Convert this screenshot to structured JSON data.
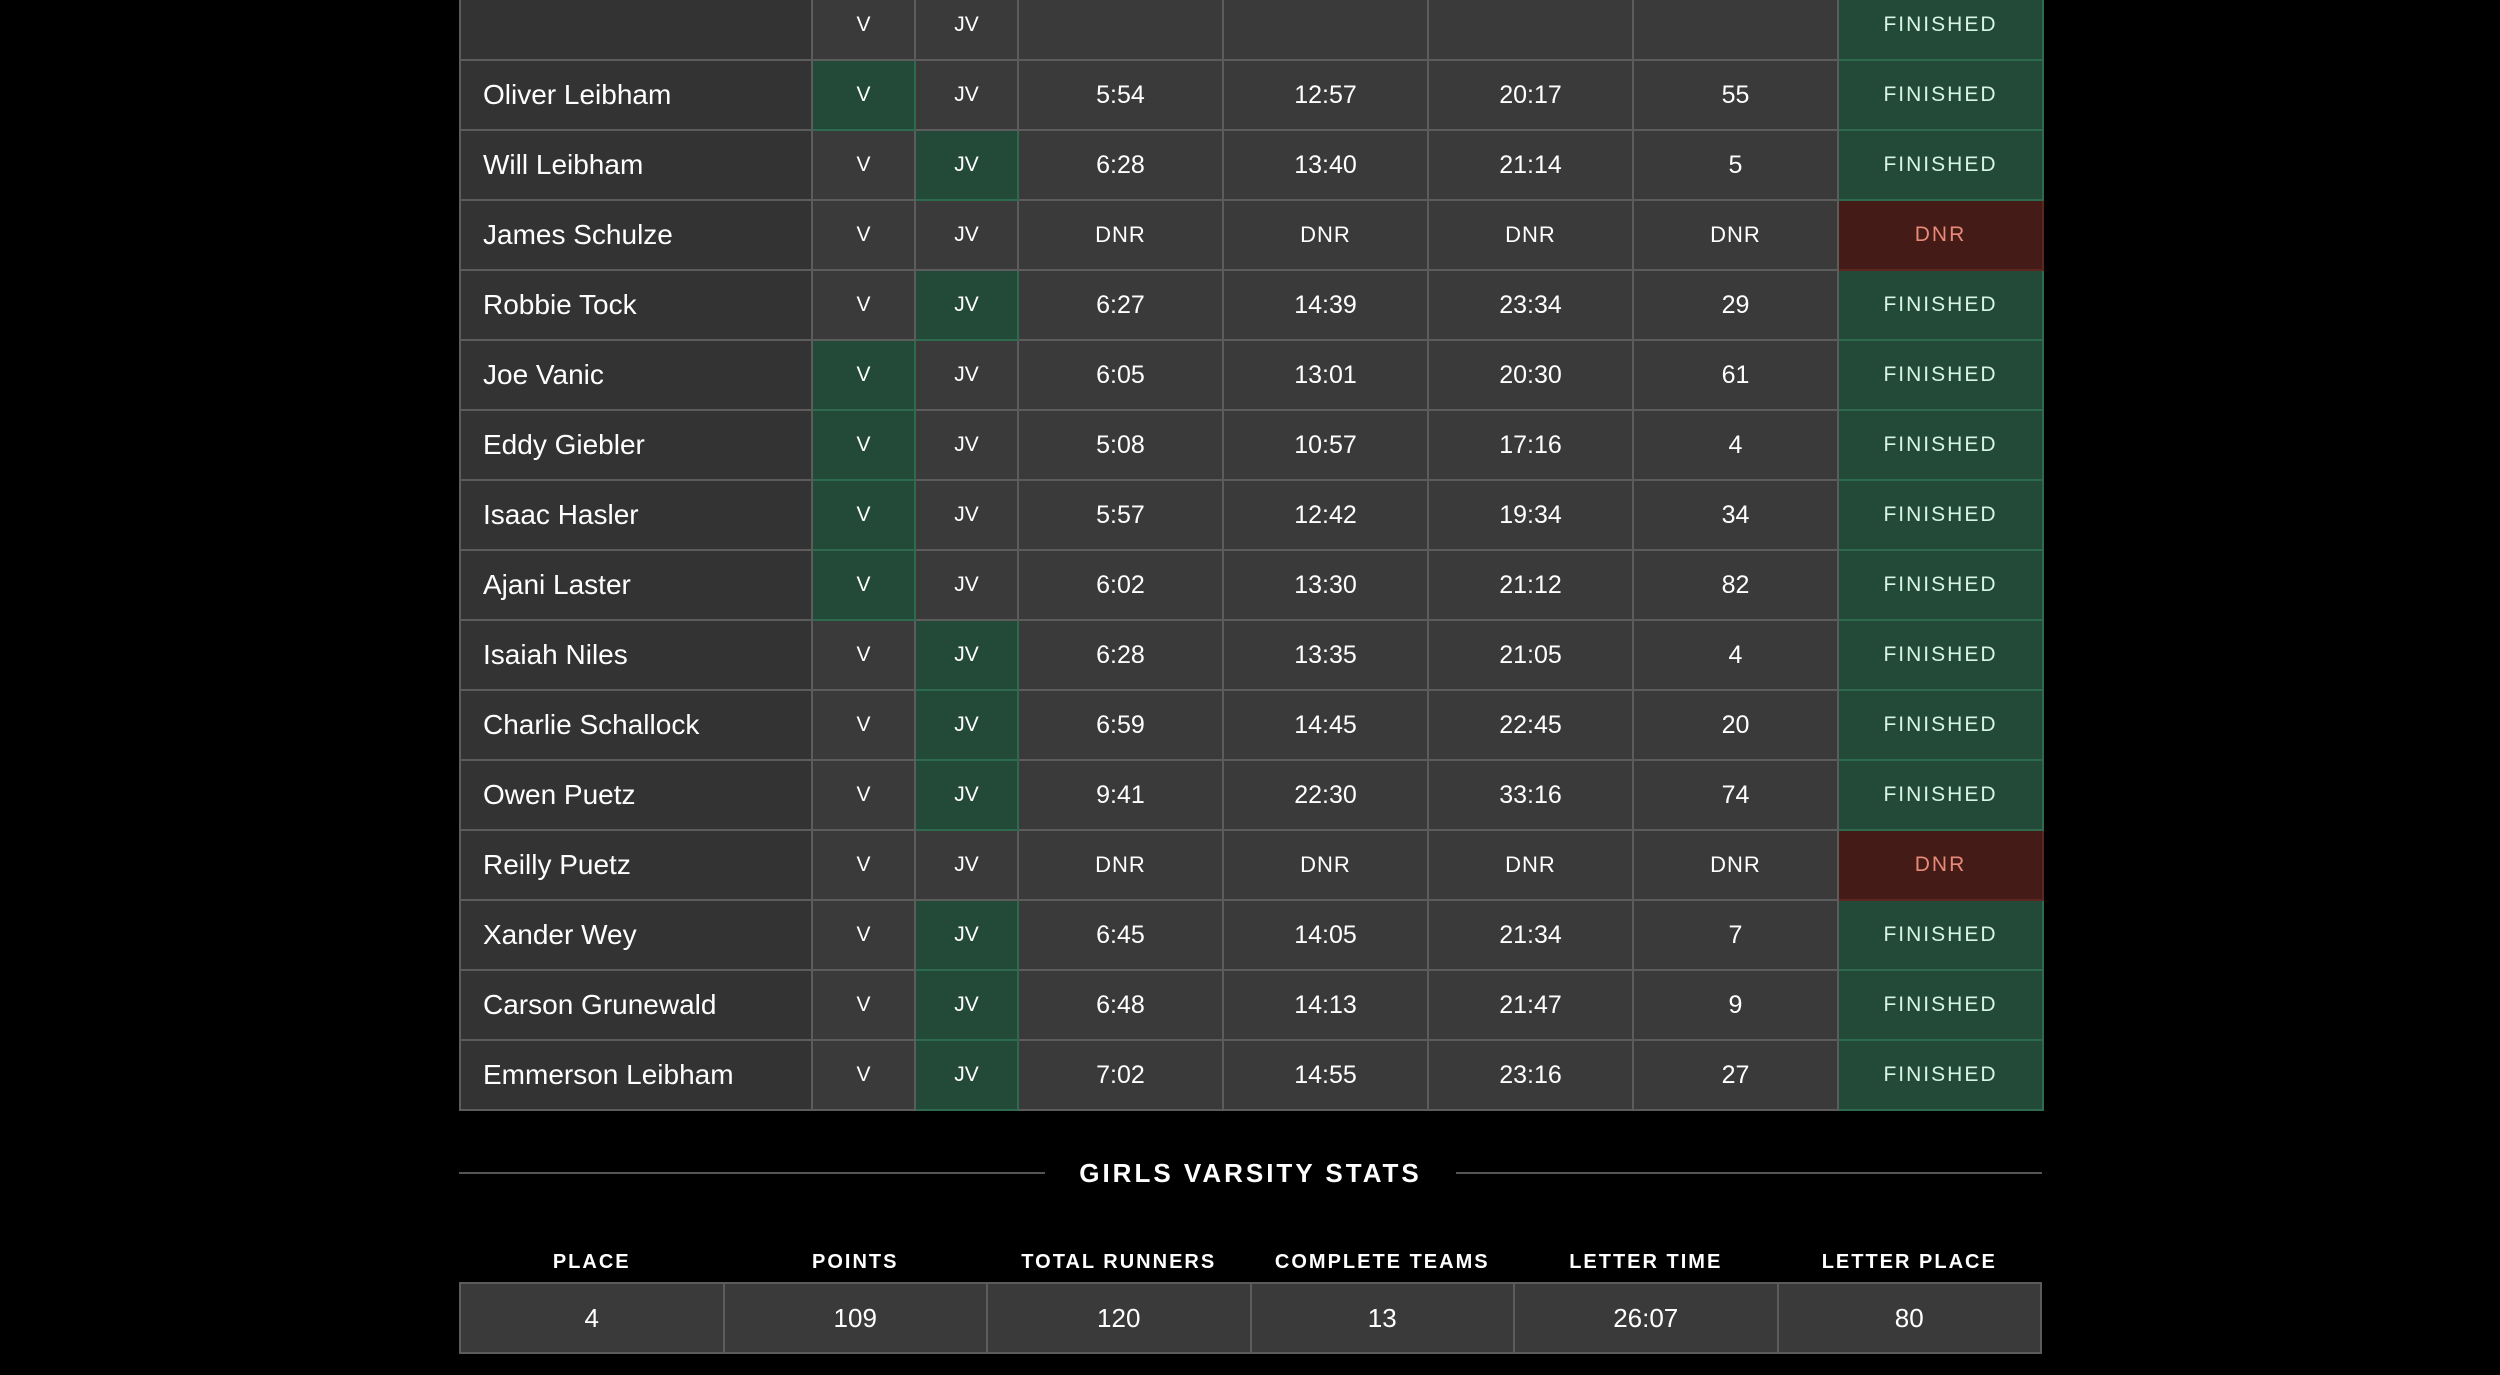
{
  "runners": [
    {
      "name": "",
      "v": false,
      "jv": false,
      "split1": "",
      "split2": "",
      "time": "",
      "place": "",
      "status": "FINISHED"
    },
    {
      "name": "Oliver Leibham",
      "v": true,
      "jv": false,
      "split1": "5:54",
      "split2": "12:57",
      "time": "20:17",
      "place": "55",
      "status": "FINISHED"
    },
    {
      "name": "Will Leibham",
      "v": false,
      "jv": true,
      "split1": "6:28",
      "split2": "13:40",
      "time": "21:14",
      "place": "5",
      "status": "FINISHED"
    },
    {
      "name": "James Schulze",
      "v": false,
      "jv": false,
      "split1": "DNR",
      "split2": "DNR",
      "time": "DNR",
      "place": "DNR",
      "status": "DNR"
    },
    {
      "name": "Robbie Tock",
      "v": false,
      "jv": true,
      "split1": "6:27",
      "split2": "14:39",
      "time": "23:34",
      "place": "29",
      "status": "FINISHED"
    },
    {
      "name": "Joe Vanic",
      "v": true,
      "jv": false,
      "split1": "6:05",
      "split2": "13:01",
      "time": "20:30",
      "place": "61",
      "status": "FINISHED"
    },
    {
      "name": "Eddy Giebler",
      "v": true,
      "jv": false,
      "split1": "5:08",
      "split2": "10:57",
      "time": "17:16",
      "place": "4",
      "status": "FINISHED"
    },
    {
      "name": "Isaac Hasler",
      "v": true,
      "jv": false,
      "split1": "5:57",
      "split2": "12:42",
      "time": "19:34",
      "place": "34",
      "status": "FINISHED"
    },
    {
      "name": "Ajani Laster",
      "v": true,
      "jv": false,
      "split1": "6:02",
      "split2": "13:30",
      "time": "21:12",
      "place": "82",
      "status": "FINISHED"
    },
    {
      "name": "Isaiah Niles",
      "v": false,
      "jv": true,
      "split1": "6:28",
      "split2": "13:35",
      "time": "21:05",
      "place": "4",
      "status": "FINISHED"
    },
    {
      "name": "Charlie Schallock",
      "v": false,
      "jv": true,
      "split1": "6:59",
      "split2": "14:45",
      "time": "22:45",
      "place": "20",
      "status": "FINISHED"
    },
    {
      "name": "Owen Puetz",
      "v": false,
      "jv": true,
      "split1": "9:41",
      "split2": "22:30",
      "time": "33:16",
      "place": "74",
      "status": "FINISHED"
    },
    {
      "name": "Reilly Puetz",
      "v": false,
      "jv": false,
      "split1": "DNR",
      "split2": "DNR",
      "time": "DNR",
      "place": "DNR",
      "status": "DNR"
    },
    {
      "name": "Xander Wey",
      "v": false,
      "jv": true,
      "split1": "6:45",
      "split2": "14:05",
      "time": "21:34",
      "place": "7",
      "status": "FINISHED"
    },
    {
      "name": "Carson Grunewald",
      "v": false,
      "jv": true,
      "split1": "6:48",
      "split2": "14:13",
      "time": "21:47",
      "place": "9",
      "status": "FINISHED"
    },
    {
      "name": "Emmerson Leibham",
      "v": false,
      "jv": true,
      "split1": "7:02",
      "split2": "14:55",
      "time": "23:16",
      "place": "27",
      "status": "FINISHED"
    }
  ],
  "level_labels": {
    "v": "V",
    "jv": "JV"
  },
  "stats": {
    "title": "GIRLS VARSITY STATS",
    "headers": {
      "place": "PLACE",
      "points": "POINTS",
      "total_runners": "TOTAL RUNNERS",
      "complete_teams": "COMPLETE TEAMS",
      "letter_time": "LETTER TIME",
      "letter_place": "LETTER PLACE"
    },
    "values": {
      "place": "4",
      "points": "109",
      "total_runners": "120",
      "complete_teams": "13",
      "letter_time": "26:07",
      "letter_place": "80"
    }
  },
  "colors": {
    "background": "#000000",
    "cell": "#3a3a3a",
    "highlight_green": "#234a39",
    "dnr_red": "#451b17",
    "dnr_text": "#e88a78"
  }
}
